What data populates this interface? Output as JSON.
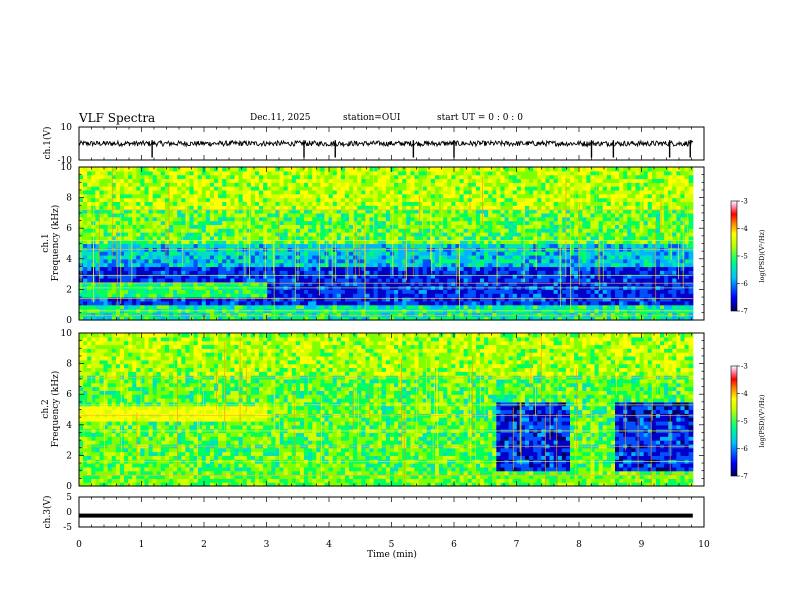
{
  "header": {
    "title": "VLF Spectra",
    "date": "Dec.11, 2025",
    "station": "station=OUI",
    "start": "start  UT =   0 : 0  : 0"
  },
  "chart_data": [
    {
      "type": "line",
      "id": "ch1-waveform",
      "ylabel": "ch.1(V)",
      "ylim": [
        -10,
        10
      ],
      "y_ticks": [
        "10",
        "-10"
      ],
      "xlim": [
        0,
        10
      ],
      "baseline_value": 0,
      "spike_times_min": [
        1.17,
        3.6,
        4.1,
        5.35,
        6.0,
        8.2,
        8.55,
        9.45,
        9.78
      ]
    },
    {
      "type": "heatmap",
      "id": "ch1-spectrogram",
      "ylabel": "ch.1\nFrequency (kHz)",
      "ylabel_lines": [
        "ch.1",
        "Frequency  (kHz)"
      ],
      "xlim": [
        0,
        10
      ],
      "ylim": [
        0,
        10
      ],
      "y_ticks": [
        "0",
        "2",
        "4",
        "6",
        "8",
        "10"
      ],
      "colorbar": {
        "label": "log(PSD)(V²/Hz)",
        "range": [
          -7,
          -3
        ],
        "ticks": [
          "-3",
          "-4",
          "-5",
          "-6",
          "-7"
        ]
      },
      "features": {
        "quiet_band_khz": [
          1.0,
          3.5
        ],
        "quiet_band_period_min": [
          0,
          9.8
        ],
        "broadband_noise_above_khz": 4.0,
        "harmonic_lines_khz": [
          0.3,
          0.6,
          1.4,
          2.1,
          2.4,
          2.9,
          4.6,
          5.2,
          7.2
        ]
      }
    },
    {
      "type": "heatmap",
      "id": "ch2-spectrogram",
      "ylabel": "ch.2\nFrequency (kHz)",
      "ylabel_lines": [
        "ch.2",
        "Frequency  (kHz)"
      ],
      "xlim": [
        0,
        10
      ],
      "ylim": [
        0,
        10
      ],
      "y_ticks": [
        "0",
        "2",
        "4",
        "6",
        "8",
        "10"
      ],
      "colorbar": {
        "label": "log(PSD)(V²/Hz)",
        "range": [
          -7,
          -3
        ],
        "ticks": [
          "-3",
          "-4",
          "-5",
          "-6",
          "-7"
        ]
      },
      "features": {
        "quiet_intervals_min": [
          [
            6.65,
            7.8
          ],
          [
            8.55,
            9.8
          ]
        ],
        "quiet_band_khz": [
          1.0,
          5.5
        ],
        "harmonic_lines_khz": [
          0.7,
          1.6,
          2.6,
          3.6,
          4.6,
          5.3,
          7.1
        ]
      }
    },
    {
      "type": "line",
      "id": "ch3-waveform",
      "ylabel": "ch.3(V)",
      "ylim": [
        -5,
        5
      ],
      "y_ticks": [
        "5",
        "0",
        "-5"
      ],
      "xlim": [
        0,
        10
      ],
      "constant_value": -1.2
    }
  ],
  "x_axis": {
    "label": "Time  (min)",
    "ticks": [
      "0",
      "1",
      "2",
      "3",
      "4",
      "5",
      "6",
      "7",
      "8",
      "9",
      "10"
    ]
  },
  "colors": {
    "background": "#ffffff",
    "trace": "#000000",
    "scale": [
      "#000080",
      "#0000ff",
      "#00bfff",
      "#00ff80",
      "#c8ff00",
      "#ffff00",
      "#ff8000",
      "#ff0000",
      "#ff80a0",
      "#ffffff"
    ]
  }
}
